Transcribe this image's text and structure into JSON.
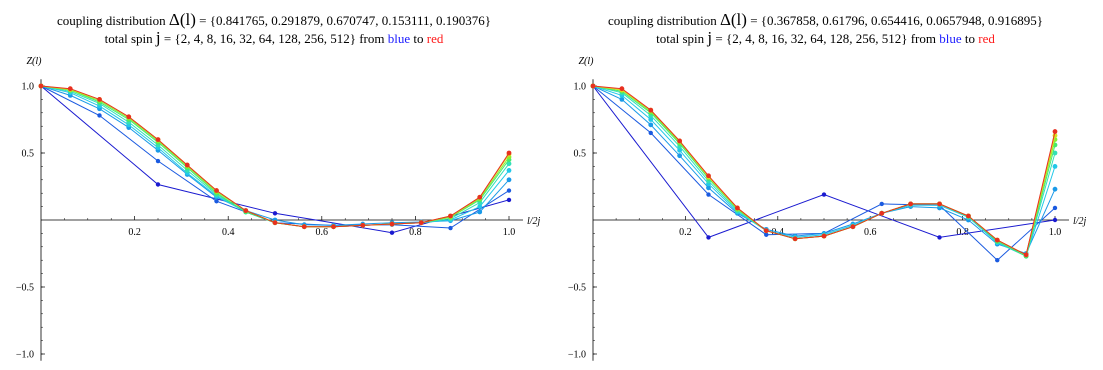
{
  "panels": [
    {
      "title_prefix": "coupling distribution ",
      "delta_symbol": "Δ(l)",
      "delta_values": " = {0.841765, 0.291879, 0.670747, 0.153111, 0.190376}",
      "subtitle_prefix": "total spin ",
      "spin_symbol": "j",
      "spin_values": " = {2, 4, 8, 16, 32, 64, 128, 256, 512}  from ",
      "from_color_word": "blue",
      "to_word": " to ",
      "to_color_word": "red"
    },
    {
      "title_prefix": "coupling distribution ",
      "delta_symbol": "Δ(l)",
      "delta_values": " = {0.367858, 0.61796, 0.654416, 0.0657948, 0.916895}",
      "subtitle_prefix": "total spin ",
      "spin_symbol": "j",
      "spin_values": " = {2, 4, 8, 16, 32, 64, 128, 256, 512}  from ",
      "from_color_word": "blue",
      "to_word": " to ",
      "to_color_word": "red"
    }
  ],
  "colors": {
    "axis": "#000000",
    "blue": "#1a1aff",
    "red": "#ff1a1a",
    "series": [
      "#1a1ad0",
      "#1a5ae0",
      "#1a9ae8",
      "#22c8e8",
      "#33e0b8",
      "#44e870",
      "#88ee30",
      "#d8e020",
      "#e83020"
    ]
  },
  "chart_data": [
    {
      "type": "line",
      "xlabel": "l/2j",
      "ylabel": "Z(l)",
      "xlim": [
        0,
        1.0
      ],
      "ylim": [
        -1.05,
        1.05
      ],
      "xticks": [
        0.2,
        0.4,
        0.6,
        0.8,
        1.0
      ],
      "yticks": [
        -1.0,
        -0.5,
        0.5,
        1.0
      ],
      "xtick_labels": [
        "0.2",
        "0.4",
        "0.6",
        "0.8",
        "1.0"
      ],
      "ytick_labels": [
        "−1.0",
        "−0.5",
        "0.5",
        "1.0"
      ],
      "grid": false,
      "series": [
        {
          "spin": 2,
          "x": [
            0,
            0.25,
            0.5,
            0.75,
            1.0
          ],
          "y": [
            1.0,
            0.265,
            0.05,
            -0.095,
            0.15
          ]
        },
        {
          "spin": 4,
          "x": [
            0,
            0.125,
            0.25,
            0.375,
            0.5,
            0.625,
            0.75,
            0.875,
            1.0
          ],
          "y": [
            1.0,
            0.78,
            0.44,
            0.14,
            -0.02,
            -0.04,
            -0.035,
            -0.06,
            0.22
          ]
        },
        {
          "spin": 8,
          "x": [
            0,
            0.0625,
            0.125,
            0.1875,
            0.25,
            0.3125,
            0.375,
            0.4375,
            0.5,
            0.5625,
            0.625,
            0.6875,
            0.75,
            0.8125,
            0.875,
            0.9375,
            1.0
          ],
          "y": [
            1.0,
            0.93,
            0.83,
            0.69,
            0.52,
            0.34,
            0.17,
            0.07,
            0.0,
            -0.035,
            -0.04,
            -0.03,
            -0.02,
            -0.015,
            -0.005,
            0.06,
            0.3
          ]
        },
        {
          "spin": 16,
          "x": [
            0,
            0.0625,
            0.125,
            0.1875,
            0.25,
            0.3125,
            0.375,
            0.4375,
            0.5,
            0.5625,
            0.625,
            0.6875,
            0.75,
            0.8125,
            0.875,
            0.9375,
            1.0
          ],
          "y": [
            1.0,
            0.95,
            0.85,
            0.71,
            0.54,
            0.35,
            0.18,
            0.06,
            -0.02,
            -0.05,
            -0.05,
            -0.04,
            -0.03,
            -0.02,
            0.0,
            0.1,
            0.37
          ]
        },
        {
          "spin": 32,
          "x": [
            0,
            0.0625,
            0.125,
            0.1875,
            0.25,
            0.3125,
            0.375,
            0.4375,
            0.5,
            0.5625,
            0.625,
            0.6875,
            0.75,
            0.8125,
            0.875,
            0.9375,
            1.0
          ],
          "y": [
            1.0,
            0.96,
            0.87,
            0.73,
            0.56,
            0.37,
            0.19,
            0.06,
            -0.02,
            -0.05,
            -0.05,
            -0.04,
            -0.03,
            -0.02,
            0.01,
            0.13,
            0.42
          ]
        },
        {
          "spin": 64,
          "x": [
            0,
            0.0625,
            0.125,
            0.1875,
            0.25,
            0.3125,
            0.375,
            0.4375,
            0.5,
            0.5625,
            0.625,
            0.6875,
            0.75,
            0.8125,
            0.875,
            0.9375,
            1.0
          ],
          "y": [
            1.0,
            0.97,
            0.88,
            0.75,
            0.58,
            0.39,
            0.2,
            0.06,
            -0.02,
            -0.05,
            -0.05,
            -0.04,
            -0.03,
            -0.02,
            0.02,
            0.15,
            0.45
          ]
        },
        {
          "spin": 128,
          "x": [
            0,
            0.0625,
            0.125,
            0.1875,
            0.25,
            0.3125,
            0.375,
            0.4375,
            0.5,
            0.5625,
            0.625,
            0.6875,
            0.75,
            0.8125,
            0.875,
            0.9375,
            1.0
          ],
          "y": [
            1.0,
            0.97,
            0.89,
            0.76,
            0.59,
            0.4,
            0.21,
            0.07,
            -0.02,
            -0.05,
            -0.05,
            -0.04,
            -0.03,
            -0.02,
            0.02,
            0.16,
            0.47
          ]
        },
        {
          "spin": 256,
          "x": [
            0,
            0.0625,
            0.125,
            0.1875,
            0.25,
            0.3125,
            0.375,
            0.4375,
            0.5,
            0.5625,
            0.625,
            0.6875,
            0.75,
            0.8125,
            0.875,
            0.9375,
            1.0
          ],
          "y": [
            1.0,
            0.975,
            0.9,
            0.77,
            0.6,
            0.41,
            0.22,
            0.07,
            -0.02,
            -0.05,
            -0.05,
            -0.04,
            -0.03,
            -0.02,
            0.03,
            0.17,
            0.49
          ]
        },
        {
          "spin": 512,
          "x": [
            0,
            0.0625,
            0.125,
            0.1875,
            0.25,
            0.3125,
            0.375,
            0.4375,
            0.5,
            0.5625,
            0.625,
            0.6875,
            0.75,
            0.8125,
            0.875,
            0.9375,
            1.0
          ],
          "y": [
            1.0,
            0.98,
            0.9,
            0.77,
            0.6,
            0.41,
            0.22,
            0.07,
            -0.02,
            -0.05,
            -0.05,
            -0.04,
            -0.03,
            -0.02,
            0.03,
            0.17,
            0.5
          ]
        }
      ]
    },
    {
      "type": "line",
      "xlabel": "l/2j",
      "ylabel": "Z(l)",
      "xlim": [
        0,
        1.0
      ],
      "ylim": [
        -1.05,
        1.05
      ],
      "xticks": [
        0.2,
        0.4,
        0.6,
        0.8,
        1.0
      ],
      "yticks": [
        -1.0,
        -0.5,
        0.5,
        1.0
      ],
      "xtick_labels": [
        "0.2",
        "0.4",
        "0.6",
        "0.8",
        "1.0"
      ],
      "ytick_labels": [
        "−1.0",
        "−0.5",
        "0.5",
        "1.0"
      ],
      "grid": false,
      "series": [
        {
          "spin": 2,
          "x": [
            0,
            0.25,
            0.5,
            0.75,
            1.0
          ],
          "y": [
            1.0,
            -0.13,
            0.19,
            -0.13,
            0.0
          ]
        },
        {
          "spin": 4,
          "x": [
            0,
            0.125,
            0.25,
            0.375,
            0.5,
            0.625,
            0.75,
            0.875,
            1.0
          ],
          "y": [
            1.0,
            0.65,
            0.19,
            -0.11,
            -0.1,
            0.12,
            0.11,
            -0.3,
            0.09
          ]
        },
        {
          "spin": 8,
          "x": [
            0,
            0.0625,
            0.125,
            0.1875,
            0.25,
            0.3125,
            0.375,
            0.4375,
            0.5,
            0.5625,
            0.625,
            0.6875,
            0.75,
            0.8125,
            0.875,
            0.9375,
            1.0
          ],
          "y": [
            1.0,
            0.9,
            0.71,
            0.48,
            0.24,
            0.05,
            -0.07,
            -0.12,
            -0.1,
            -0.03,
            0.05,
            0.1,
            0.09,
            0.0,
            -0.18,
            -0.25,
            0.23
          ]
        },
        {
          "spin": 16,
          "x": [
            0,
            0.0625,
            0.125,
            0.1875,
            0.25,
            0.3125,
            0.375,
            0.4375,
            0.5,
            0.5625,
            0.625,
            0.6875,
            0.75,
            0.8125,
            0.875,
            0.9375,
            1.0
          ],
          "y": [
            1.0,
            0.93,
            0.75,
            0.52,
            0.27,
            0.06,
            -0.08,
            -0.13,
            -0.11,
            -0.04,
            0.05,
            0.11,
            0.11,
            0.02,
            -0.17,
            -0.27,
            0.4
          ]
        },
        {
          "spin": 32,
          "x": [
            0,
            0.0625,
            0.125,
            0.1875,
            0.25,
            0.3125,
            0.375,
            0.4375,
            0.5,
            0.5625,
            0.625,
            0.6875,
            0.75,
            0.8125,
            0.875,
            0.9375,
            1.0
          ],
          "y": [
            1.0,
            0.95,
            0.78,
            0.55,
            0.29,
            0.07,
            -0.08,
            -0.14,
            -0.12,
            -0.05,
            0.05,
            0.12,
            0.12,
            0.02,
            -0.16,
            -0.27,
            0.5
          ]
        },
        {
          "spin": 64,
          "x": [
            0,
            0.0625,
            0.125,
            0.1875,
            0.25,
            0.3125,
            0.375,
            0.4375,
            0.5,
            0.5625,
            0.625,
            0.6875,
            0.75,
            0.8125,
            0.875,
            0.9375,
            1.0
          ],
          "y": [
            1.0,
            0.96,
            0.8,
            0.57,
            0.31,
            0.08,
            -0.08,
            -0.14,
            -0.12,
            -0.05,
            0.05,
            0.12,
            0.12,
            0.03,
            -0.16,
            -0.27,
            0.56
          ]
        },
        {
          "spin": 128,
          "x": [
            0,
            0.0625,
            0.125,
            0.1875,
            0.25,
            0.3125,
            0.375,
            0.4375,
            0.5,
            0.5625,
            0.625,
            0.6875,
            0.75,
            0.8125,
            0.875,
            0.9375,
            1.0
          ],
          "y": [
            1.0,
            0.97,
            0.81,
            0.58,
            0.32,
            0.08,
            -0.08,
            -0.14,
            -0.12,
            -0.05,
            0.05,
            0.12,
            0.12,
            0.03,
            -0.15,
            -0.26,
            0.6
          ]
        },
        {
          "spin": 256,
          "x": [
            0,
            0.0625,
            0.125,
            0.1875,
            0.25,
            0.3125,
            0.375,
            0.4375,
            0.5,
            0.5625,
            0.625,
            0.6875,
            0.75,
            0.8125,
            0.875,
            0.9375,
            1.0
          ],
          "y": [
            1.0,
            0.97,
            0.82,
            0.59,
            0.32,
            0.09,
            -0.08,
            -0.14,
            -0.12,
            -0.05,
            0.05,
            0.12,
            0.12,
            0.03,
            -0.15,
            -0.26,
            0.63
          ]
        },
        {
          "spin": 512,
          "x": [
            0,
            0.0625,
            0.125,
            0.1875,
            0.25,
            0.3125,
            0.375,
            0.4375,
            0.5,
            0.5625,
            0.625,
            0.6875,
            0.75,
            0.8125,
            0.875,
            0.9375,
            1.0
          ],
          "y": [
            1.0,
            0.98,
            0.82,
            0.59,
            0.33,
            0.09,
            -0.08,
            -0.14,
            -0.12,
            -0.05,
            0.05,
            0.12,
            0.12,
            0.03,
            -0.15,
            -0.26,
            0.66
          ]
        }
      ]
    }
  ]
}
